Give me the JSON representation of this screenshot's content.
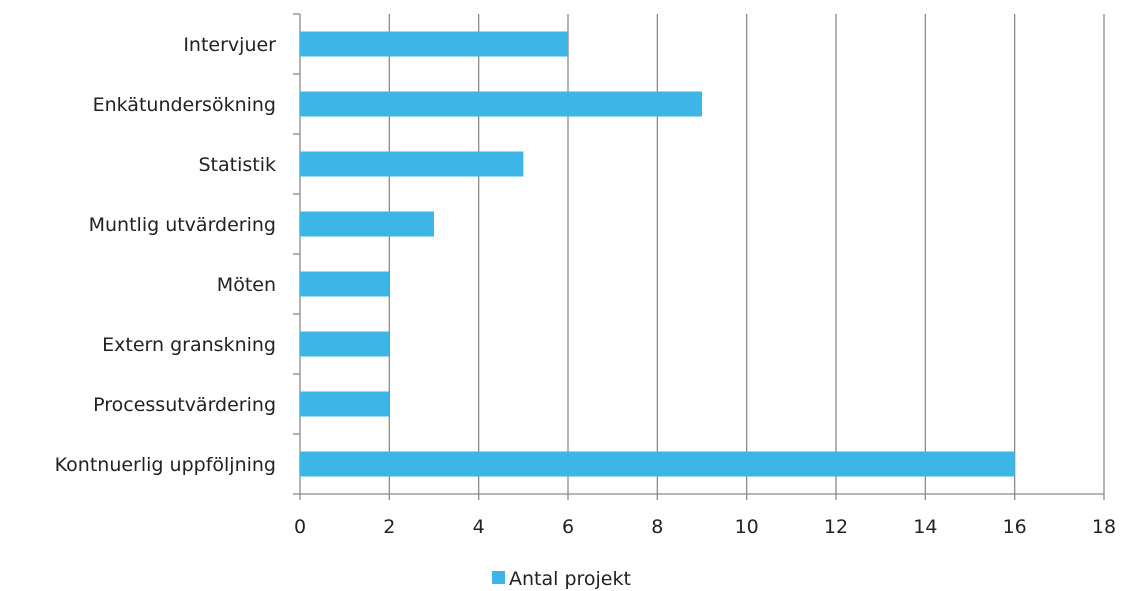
{
  "chart_data": {
    "type": "bar",
    "orientation": "horizontal",
    "categories": [
      "Intervjuer",
      "Enkätundersökning",
      "Statistik",
      "Muntlig utvärdering",
      "Möten",
      "Extern granskning",
      "Processutvärdering",
      "Kontnuerlig uppföljning"
    ],
    "series": [
      {
        "name": "Antal projekt",
        "values": [
          6,
          9,
          5,
          3,
          2,
          2,
          2,
          16
        ],
        "color": "#3DB5E6"
      }
    ],
    "xlim": [
      0,
      18
    ],
    "x_ticks": [
      0,
      2,
      4,
      6,
      8,
      10,
      12,
      14,
      16,
      18
    ],
    "grid": "vertical",
    "legend": "bottom-center"
  }
}
